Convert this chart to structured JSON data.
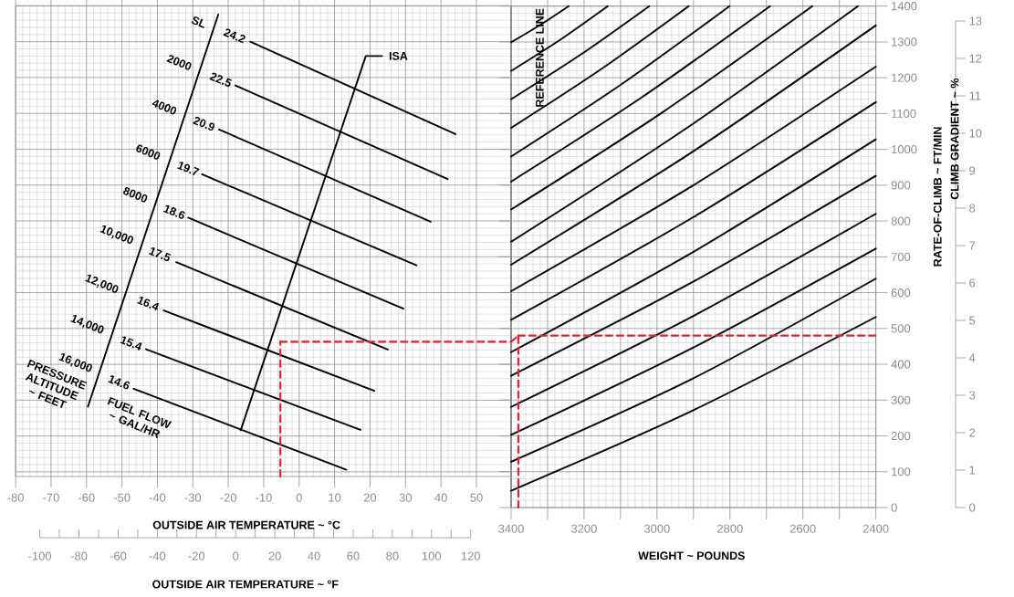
{
  "chart_data": [
    {
      "type": "line",
      "xlabel": "OUTSIDE AIR TEMPERATURE ~ °C",
      "x2label": "OUTSIDE AIR TEMPERATURE ~ °F",
      "xlim": [
        -80,
        59.8
      ],
      "xticks": [
        -80,
        -70,
        -60,
        -50,
        -40,
        -30,
        -20,
        -10,
        0,
        10,
        20,
        30,
        40,
        50
      ],
      "ylim": [
        87,
        1400
      ],
      "yticks": [
        100,
        200,
        300,
        400,
        500,
        600,
        700,
        800,
        900,
        1000,
        1100,
        1200,
        1300,
        1400
      ],
      "tick_labels": "x",
      "x2lim": [
        -100,
        120
      ],
      "x2ticks": [
        -100,
        -80,
        -60,
        -40,
        -20,
        0,
        20,
        40,
        60,
        80,
        100,
        120
      ],
      "grid": true,
      "series": [
        {
          "color": "#000000",
          "x": [
            -13.8,
            44.1
          ],
          "values": [
            1300,
            1042
          ]
        },
        {
          "color": "#000000",
          "x": [
            -18.0,
            41.9
          ],
          "values": [
            1178,
            917
          ]
        },
        {
          "color": "#000000",
          "x": [
            -22.6,
            37.1
          ],
          "values": [
            1055,
            798
          ]
        },
        {
          "color": "#000000",
          "x": [
            -27.4,
            33.1
          ],
          "values": [
            930,
            676
          ]
        },
        {
          "color": "#000000",
          "x": [
            -31.3,
            29.4
          ],
          "values": [
            809,
            555
          ]
        },
        {
          "color": "#000000",
          "x": [
            -34.7,
            25.0
          ],
          "values": [
            685,
            441
          ]
        },
        {
          "color": "#000000",
          "x": [
            -38.2,
            21.2
          ],
          "values": [
            550,
            326
          ]
        },
        {
          "color": "#000000",
          "x": [
            -43.2,
            17.3
          ],
          "values": [
            442,
            217
          ]
        },
        {
          "color": "#000000",
          "x": [
            -46.7,
            13.3
          ],
          "values": [
            332,
            106
          ]
        },
        {
          "color": "#000000",
          "x": [
            -59.6,
            -22.8
          ],
          "values": [
            282,
            1376
          ]
        },
        {
          "color": "#000000",
          "x": [
            -16.5,
            18.8
          ],
          "values": [
            216,
            1260
          ]
        },
        {
          "color": "#000000",
          "x": [
            18.8,
            23.4
          ],
          "values": [
            1260,
            1260
          ]
        },
        {
          "color": "#e8202a",
          "line_style": "dashed",
          "x": [
            -5.3,
            -5.3
          ],
          "values": [
            87,
            463
          ]
        },
        {
          "color": "#e8202a",
          "line_style": "dashed",
          "x": [
            -5.3,
            59.8
          ],
          "values": [
            463,
            463
          ]
        }
      ],
      "annotations": [
        "SL",
        "2000",
        "4000",
        "6000",
        "8000",
        "10,000",
        "12,000",
        "14,000",
        "16,000",
        "24.2",
        "22.5",
        "20.9",
        "19.7",
        "18.6",
        "17.5",
        "16.4",
        "15.4",
        "14.6",
        "ISA",
        "PRESSURE ALTITUDE ~ FEET",
        "FUEL FLOW ~ GAL/HR"
      ]
    },
    {
      "type": "line",
      "xlabel": "WEIGHT ~ POUNDS",
      "ylabel": "RATE-OF-CLIMB ~ FT/MIN",
      "y2label": "CLIMB GRADIENT ~ %",
      "xlim": [
        3400,
        2400
      ],
      "xticks": [
        3400,
        {
          "value": 3300,
          "label": null
        },
        3200,
        {
          "value": 3100,
          "label": null
        },
        3000,
        {
          "value": 2900,
          "label": null
        },
        2800,
        {
          "value": 2700,
          "label": null
        },
        2600,
        {
          "value": 2500,
          "label": null
        },
        2400
      ],
      "ylim": [
        0,
        1400
      ],
      "yticks": [
        0,
        100,
        200,
        300,
        400,
        500,
        600,
        700,
        800,
        900,
        1000,
        1100,
        1200,
        1300,
        1400
      ],
      "y2lim": [
        0,
        13
      ],
      "y2ticks": [
        0,
        1,
        2,
        3,
        4,
        5,
        6,
        7,
        8,
        9,
        10,
        11,
        12,
        13
      ],
      "grid": true,
      "ref_lines": [
        {
          "axis": "x",
          "value": 3400,
          "label": "REFERENCE LINE",
          "color": "#8c8c8c"
        }
      ],
      "series": [
        {
          "color": "#000000",
          "x": [
            3400,
            3321,
            3242
          ],
          "values": [
            1299,
            1347,
            1400
          ]
        },
        {
          "color": "#000000",
          "x": [
            3400,
            3267,
            3135
          ],
          "values": [
            1219,
            1305,
            1400
          ]
        },
        {
          "color": "#000000",
          "x": [
            3400,
            3210,
            3021
          ],
          "values": [
            1140,
            1264,
            1400
          ]
        },
        {
          "color": "#000000",
          "x": [
            3400,
            3156,
            2913
          ],
          "values": [
            1060,
            1222,
            1400
          ]
        },
        {
          "color": "#000000",
          "x": [
            3400,
            3100,
            2801
          ],
          "values": [
            980,
            1180,
            1400
          ]
        },
        {
          "color": "#000000",
          "x": [
            3400,
            3045,
            2690
          ],
          "values": [
            910,
            1143,
            1400
          ]
        },
        {
          "color": "#000000",
          "x": [
            3400,
            2987,
            2574
          ],
          "values": [
            832,
            1102,
            1400
          ]
        },
        {
          "color": "#000000",
          "x": [
            3400,
            2925,
            2449
          ],
          "values": [
            742,
            1055,
            1400
          ]
        },
        {
          "color": "#000000",
          "x": [
            3400,
            2900,
            2400
          ],
          "values": [
            678,
            995,
            1346
          ]
        },
        {
          "color": "#000000",
          "x": [
            3400,
            2900,
            2400
          ],
          "values": [
            604,
            900,
            1231
          ]
        },
        {
          "color": "#000000",
          "x": [
            3400,
            2900,
            2400
          ],
          "values": [
            524,
            811,
            1132
          ]
        },
        {
          "color": "#000000",
          "x": [
            3400,
            2900,
            2400
          ],
          "values": [
            434,
            714,
            1028
          ]
        },
        {
          "color": "#000000",
          "x": [
            3400,
            2900,
            2400
          ],
          "values": [
            368,
            631,
            926
          ]
        },
        {
          "color": "#000000",
          "x": [
            3400,
            2900,
            2400
          ],
          "values": [
            281,
            535,
            820
          ]
        },
        {
          "color": "#000000",
          "x": [
            3400,
            2900,
            2400
          ],
          "values": [
            203,
            447,
            723
          ]
        },
        {
          "color": "#000000",
          "x": [
            3400,
            2900,
            2400
          ],
          "values": [
            128,
            361,
            639
          ]
        },
        {
          "color": "#000000",
          "x": [
            3400,
            2900,
            2400
          ],
          "values": [
            47,
            272,
            532
          ]
        },
        {
          "color": "#e8202a",
          "line_style": "dashed",
          "x": [
            3380,
            3380
          ],
          "values": [
            0,
            480
          ]
        },
        {
          "color": "#e8202a",
          "line_style": "dashed",
          "x": [
            3380,
            2400
          ],
          "values": [
            480,
            480
          ]
        },
        {
          "color": "#e8202a",
          "line_style": "dashed",
          "x": [
            3400,
            3380
          ],
          "values": [
            463,
            480
          ]
        }
      ]
    }
  ]
}
